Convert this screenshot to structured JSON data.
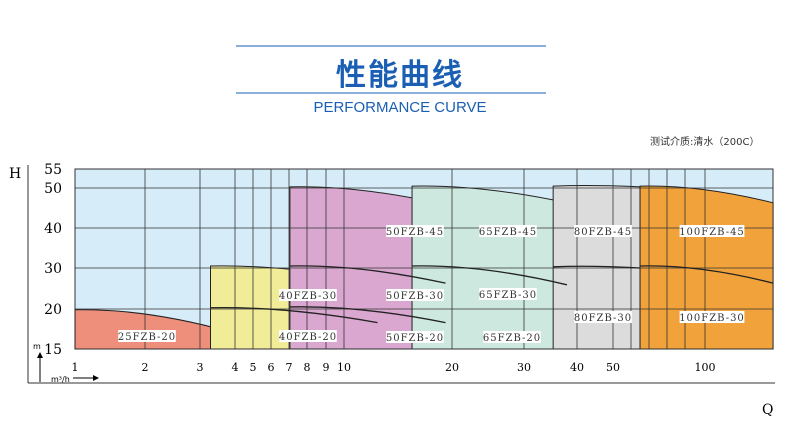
{
  "header": {
    "title": "性能曲线",
    "subtitle": "PERFORMANCE CURVE",
    "note": "测试介质:清水（200C）"
  },
  "colors": {
    "title": "#1a5fb4",
    "background": "#d6ecf8",
    "grid": "#333333"
  },
  "chart_data": {
    "type": "area",
    "xlabel": "Q",
    "xunit": "m³/h",
    "ylabel": "H",
    "yunit": "m",
    "x_ticks": [
      1,
      2,
      3,
      4,
      5,
      6,
      7,
      8,
      9,
      10,
      20,
      30,
      40,
      50,
      100
    ],
    "y_ticks": [
      15,
      20,
      30,
      40,
      50,
      55
    ],
    "xlim": [
      1,
      137
    ],
    "ylim": [
      15,
      55
    ],
    "grid": true,
    "regions": [
      {
        "name": "25FZB",
        "color": "#ee8f7c",
        "q": [
          1,
          3.9
        ],
        "top": [
          19.9,
          17.1
        ],
        "curves": [],
        "labels": [
          "25FZB-20"
        ]
      },
      {
        "name": "40FZB",
        "color": "#f1ec98",
        "q": [
          3.3,
          13.1
        ],
        "top": [
          30.5,
          26.6
        ],
        "curves": [
          [
            20.3,
            18.3
          ]
        ],
        "labels": [
          "40FZB-30",
          "40FZB-20"
        ]
      },
      {
        "name": "50FZB",
        "color": "#d9a7d0",
        "q": [
          7.05,
          19.4
        ],
        "top": [
          50.3,
          45.8
        ],
        "curves": [
          [
            30.5,
            26.3
          ],
          [
            20.5,
            18.3
          ]
        ],
        "labels": [
          "50FZB-45",
          "50FZB-30",
          "50FZB-20"
        ]
      },
      {
        "name": "65FZB",
        "color": "#cde8df",
        "q": [
          16.3,
          38.1
        ],
        "top": [
          50.5,
          46.3
        ],
        "curves": [
          [
            30.5,
            25.9
          ]
        ],
        "labels": [
          "65FZB-45",
          "65FZB-30",
          "65FZB-20"
        ]
      },
      {
        "name": "80FZB",
        "color": "#dcdcdc",
        "q": [
          35.5,
          64.7
        ],
        "top": [
          50.5,
          50.3
        ],
        "curves": [
          [
            30.3,
            30.0
          ]
        ],
        "labels": [
          "80FZB-45",
          "80FZB-30"
        ]
      },
      {
        "name": "100FZB",
        "color": "#f2a23a",
        "q": [
          64.7,
          137
        ],
        "top": [
          50.5,
          46.3
        ],
        "curves": [
          [
            30.5,
            26.3
          ]
        ],
        "labels": [
          "100FZB-45",
          "100FZB-30"
        ]
      }
    ]
  }
}
